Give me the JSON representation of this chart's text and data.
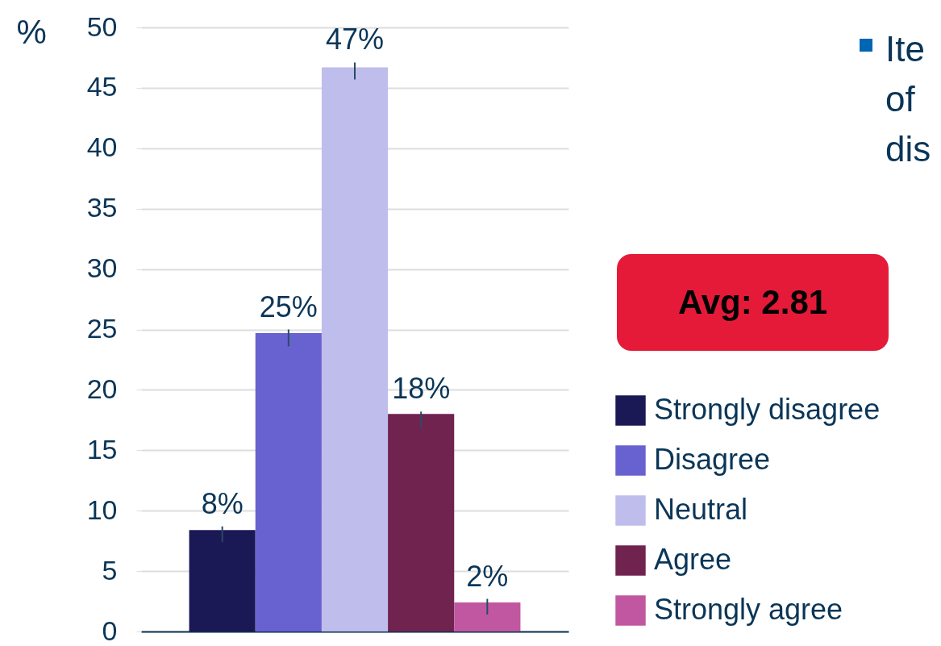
{
  "chart_data": {
    "type": "bar",
    "ylabel": "%",
    "categories": [
      null
    ],
    "series": [
      {
        "name": "Strongly disagree",
        "color": "#1b1856",
        "values": [
          8.4
        ],
        "errors": [
          [
            7.4,
            8.7
          ]
        ],
        "value_labels": [
          "8%"
        ]
      },
      {
        "name": "Disagree",
        "color": "#6862d0",
        "values": [
          24.7
        ],
        "errors": [
          [
            23.6,
            25.0
          ]
        ],
        "value_labels": [
          "25%"
        ]
      },
      {
        "name": "Neutral",
        "color": "#bfbdec",
        "values": [
          46.7
        ],
        "errors": [
          [
            45.7,
            47.1
          ]
        ],
        "value_labels": [
          "47%"
        ]
      },
      {
        "name": "Agree",
        "color": "#70234f",
        "values": [
          18.0
        ],
        "errors": [
          [
            16.8,
            18.2
          ]
        ],
        "value_labels": [
          "18%"
        ]
      },
      {
        "name": "Strongly agree",
        "color": "#c057a0",
        "values": [
          2.4
        ],
        "errors": [
          [
            1.4,
            2.7
          ]
        ],
        "value_labels": [
          "2%"
        ]
      }
    ],
    "ylim": [
      0,
      50
    ],
    "yticks": [
      0,
      5,
      10,
      15,
      20,
      25,
      30,
      35,
      40,
      45,
      50
    ],
    "grid": "y",
    "legend": "right",
    "tick_labels": "y",
    "annotations": [
      "Avg: 2.81",
      "Ite of dis"
    ]
  }
}
